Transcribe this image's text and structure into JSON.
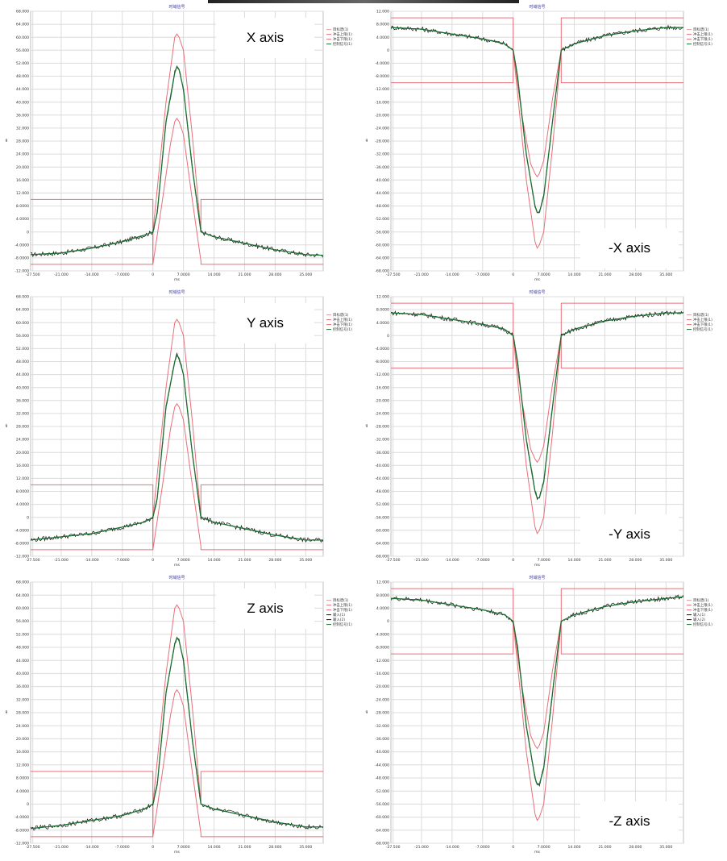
{
  "chart_data": [
    {
      "type": "line",
      "title": "时域信号",
      "label": "X axis",
      "xlabel": "ms",
      "ylabel": "g",
      "xlim": [
        -28,
        39
      ],
      "ylim": [
        -12,
        68
      ],
      "x_ticks": [
        "-27.500",
        "-21.000",
        "-14.000",
        "-7.0000",
        "0",
        "7.0000",
        "14.000",
        "21.000",
        "28.000",
        "35.000"
      ],
      "y_ticks": [
        "68.000",
        "64.000",
        "60.000",
        "56.000",
        "52.000",
        "48.000",
        "44.000",
        "40.000",
        "36.000",
        "32.000",
        "28.000",
        "24.000",
        "20.000",
        "16.000",
        "12.000",
        "8.0000",
        "4.0000",
        "0",
        "-4.0000",
        "-8.0000",
        "-12.000"
      ],
      "legend": [
        "目标谱(1)",
        "冲击上限(1)",
        "冲击下限(1)",
        "控制信号(1)"
      ],
      "colors": {
        "limits": "#e8707a",
        "control": "#1a6e2e",
        "trace": "#111111"
      },
      "series": [
        {
          "name": "冲击上限(1)",
          "x": [
            -28,
            0,
            0,
            3,
            5,
            5.5,
            6,
            7,
            9,
            11,
            11,
            39
          ],
          "y": [
            -10,
            -10,
            0,
            40,
            60,
            61,
            60,
            56,
            30,
            0,
            10,
            10
          ]
        },
        {
          "name": "冲击下限(1)",
          "x": [
            -28,
            0,
            0,
            2,
            4,
            5,
            5.5,
            6,
            7,
            9,
            11,
            11,
            39
          ],
          "y": [
            10,
            10,
            -10,
            8,
            27,
            34,
            35,
            34,
            30,
            10,
            -9,
            -10,
            -10
          ]
        },
        {
          "name": "控制信号(1)",
          "x": [
            -28,
            -21,
            -14,
            -7,
            -2,
            0,
            1,
            3,
            5,
            5.5,
            6,
            7,
            9,
            11,
            14,
            21,
            28,
            35,
            39
          ],
          "y": [
            -7,
            -6.5,
            -5,
            -3,
            -1,
            0,
            6,
            34,
            49,
            51,
            50,
            44,
            20,
            0,
            -1.5,
            -3.5,
            -5.5,
            -7,
            -7.2
          ]
        }
      ]
    },
    {
      "type": "line",
      "title": "时域信号",
      "label": "-X axis",
      "xlabel": "ms",
      "ylabel": "g",
      "xlim": [
        -28,
        39
      ],
      "ylim": [
        -68,
        12
      ],
      "x_ticks": [
        "-27.500",
        "-21.000",
        "-14.000",
        "-7.0000",
        "0",
        "7.0000",
        "14.000",
        "21.000",
        "28.000",
        "35.000"
      ],
      "y_ticks": [
        "12.000",
        "8.0000",
        "4.0000",
        "0",
        "-4.0000",
        "-8.0000",
        "-12.000",
        "-16.000",
        "-20.000",
        "-24.000",
        "-28.000",
        "-32.000",
        "-36.000",
        "-40.000",
        "-44.000",
        "-48.000",
        "-52.000",
        "-56.000",
        "-60.000",
        "-64.000",
        "-68.000"
      ],
      "legend": [
        "目标谱(1)",
        "冲击上限(1)",
        "冲击下限(1)",
        "控制信号(1)"
      ],
      "colors": {
        "limits": "#e8707a",
        "control": "#1a6e2e",
        "trace": "#111111"
      },
      "series": [
        {
          "name": "冲击上限(1)",
          "x": [
            -28,
            0,
            0,
            2,
            4,
            5,
            5.5,
            6,
            7,
            9,
            11,
            11,
            39
          ],
          "y": [
            10,
            10,
            0,
            -20,
            -35,
            -38,
            -39,
            -38,
            -34,
            -15,
            0,
            10,
            10
          ]
        },
        {
          "name": "冲击下限(1)",
          "x": [
            -28,
            0,
            0,
            3,
            5,
            5.5,
            6,
            7,
            9,
            11,
            11,
            39
          ],
          "y": [
            -10,
            -10,
            0,
            -40,
            -59,
            -61,
            -60,
            -56,
            -30,
            0,
            -10,
            -10
          ]
        },
        {
          "name": "控制信号(1)",
          "x": [
            -28,
            -21,
            -14,
            -7,
            -2,
            0,
            1,
            3,
            5,
            5.5,
            6,
            7,
            9,
            11,
            14,
            21,
            28,
            35,
            39
          ],
          "y": [
            7,
            6.5,
            5,
            3.5,
            2,
            0,
            -8,
            -32,
            -48,
            -50,
            -50,
            -45,
            -22,
            0,
            2,
            4.5,
            6,
            7,
            7
          ]
        }
      ]
    },
    {
      "type": "line",
      "title": "时域信号",
      "label": "Y axis",
      "xlabel": "ms",
      "ylabel": "g",
      "xlim": [
        -28,
        39
      ],
      "ylim": [
        -12,
        68
      ],
      "x_ticks": [
        "-27.500",
        "-21.000",
        "-14.000",
        "-7.0000",
        "0",
        "7.0000",
        "14.000",
        "21.000",
        "28.000",
        "35.000"
      ],
      "y_ticks": [
        "68.000",
        "64.000",
        "60.000",
        "56.000",
        "52.000",
        "48.000",
        "44.000",
        "40.000",
        "36.000",
        "32.000",
        "28.000",
        "24.000",
        "20.000",
        "16.000",
        "12.000",
        "8.0000",
        "4.0000",
        "0",
        "-4.0000",
        "-8.0000",
        "-12.000"
      ],
      "legend": [
        "目标谱(1)",
        "冲击上限(1)",
        "冲击下限(1)",
        "控制信号(1)"
      ],
      "colors": {
        "limits": "#e8707a",
        "control": "#1a6e2e",
        "trace": "#111111"
      },
      "series": [
        {
          "name": "冲击上限(1)",
          "x": [
            -28,
            0,
            0,
            3,
            5,
            5.5,
            6,
            7,
            9,
            11,
            11,
            39
          ],
          "y": [
            -10,
            -10,
            0,
            40,
            60,
            61,
            60,
            56,
            30,
            0,
            10,
            10
          ]
        },
        {
          "name": "冲击下限(1)",
          "x": [
            -28,
            0,
            0,
            2,
            4,
            5,
            5.5,
            6,
            7,
            9,
            11,
            11,
            39
          ],
          "y": [
            10,
            10,
            -10,
            8,
            27,
            34,
            35,
            34,
            30,
            10,
            -9,
            -10,
            -10
          ]
        },
        {
          "name": "控制信号(1)",
          "x": [
            -28,
            -21,
            -14,
            -7,
            -2,
            0,
            1,
            3,
            5,
            5.5,
            6,
            7,
            9,
            11,
            14,
            21,
            28,
            35,
            39
          ],
          "y": [
            -7,
            -6,
            -5,
            -3,
            -1.5,
            0,
            6,
            34,
            48,
            50,
            49,
            44,
            20,
            0,
            -1.5,
            -3.5,
            -5.5,
            -7,
            -7
          ]
        }
      ]
    },
    {
      "type": "line",
      "title": "时域信号",
      "label": "-Y axis",
      "xlabel": "ms",
      "ylabel": "g",
      "xlim": [
        -28,
        39
      ],
      "ylim": [
        -68,
        12
      ],
      "x_ticks": [
        "-27.500",
        "-21.000",
        "-14.000",
        "-7.0000",
        "0",
        "7.0000",
        "14.000",
        "21.000",
        "28.000",
        "35.000"
      ],
      "y_ticks": [
        "12.000",
        "8.0000",
        "4.0000",
        "0",
        "-4.0000",
        "-8.0000",
        "-12.000",
        "-16.000",
        "-20.000",
        "-24.000",
        "-28.000",
        "-32.000",
        "-36.000",
        "-40.000",
        "-44.000",
        "-48.000",
        "-52.000",
        "-56.000",
        "-60.000",
        "-64.000",
        "-68.000"
      ],
      "legend": [
        "目标谱(1)",
        "冲击上限(1)",
        "冲击下限(1)",
        "控制信号(1)"
      ],
      "colors": {
        "limits": "#e8707a",
        "control": "#1a6e2e",
        "trace": "#111111"
      },
      "series": [
        {
          "name": "冲击上限(1)",
          "x": [
            -28,
            0,
            0,
            2,
            4,
            5,
            5.5,
            6,
            7,
            9,
            11,
            11,
            39
          ],
          "y": [
            10,
            10,
            0,
            -20,
            -35,
            -38,
            -39,
            -38,
            -34,
            -15,
            0,
            10,
            10
          ]
        },
        {
          "name": "冲击下限(1)",
          "x": [
            -28,
            0,
            0,
            3,
            5,
            5.5,
            6,
            7,
            9,
            11,
            11,
            39
          ],
          "y": [
            -10,
            -10,
            0,
            -40,
            -59,
            -61,
            -60,
            -56,
            -30,
            0,
            -10,
            -10
          ]
        },
        {
          "name": "控制信号(1)",
          "x": [
            -28,
            -21,
            -14,
            -7,
            -2,
            0,
            1,
            3,
            5,
            5.5,
            6,
            7,
            9,
            11,
            14,
            21,
            28,
            35,
            39
          ],
          "y": [
            7,
            6.5,
            5,
            3.5,
            2,
            0,
            -8,
            -32,
            -48,
            -50,
            -50,
            -45,
            -22,
            0,
            2,
            4.5,
            6,
            7,
            7
          ]
        }
      ]
    },
    {
      "type": "line",
      "title": "时域信号",
      "label": "Z axis",
      "xlabel": "ms",
      "ylabel": "g",
      "xlim": [
        -28,
        39
      ],
      "ylim": [
        -12,
        68
      ],
      "x_ticks": [
        "-27.500",
        "-21.000",
        "-14.000",
        "-7.0000",
        "0",
        "7.0000",
        "14.000",
        "21.000",
        "28.000",
        "35.000"
      ],
      "y_ticks": [
        "68.000",
        "64.000",
        "60.000",
        "56.000",
        "52.000",
        "48.000",
        "44.000",
        "40.000",
        "36.000",
        "32.000",
        "28.000",
        "24.000",
        "20.000",
        "16.000",
        "12.000",
        "8.0000",
        "4.0000",
        "0",
        "-4.0000",
        "-8.0000",
        "-12.000"
      ],
      "legend": [
        "目标谱(1)",
        "冲击上限(1)",
        "冲击下限(1)",
        "输入(1)",
        "输入(2)",
        "控制信号(1)"
      ],
      "colors": {
        "limits": "#e8707a",
        "control": "#1a6e2e",
        "trace": "#111111"
      },
      "series": [
        {
          "name": "冲击上限(1)",
          "x": [
            -28,
            0,
            0,
            3,
            5,
            5.5,
            6,
            7,
            9,
            11,
            11,
            39
          ],
          "y": [
            -10,
            -10,
            0,
            40,
            60,
            61,
            60,
            56,
            30,
            0,
            10,
            10
          ]
        },
        {
          "name": "冲击下限(1)",
          "x": [
            -28,
            0,
            0,
            2,
            4,
            5,
            5.5,
            6,
            7,
            9,
            11,
            11,
            39
          ],
          "y": [
            10,
            10,
            -10,
            8,
            27,
            34,
            35,
            34,
            30,
            10,
            -9,
            -10,
            -10
          ]
        },
        {
          "name": "控制信号(1)",
          "x": [
            -28,
            -21,
            -14,
            -7,
            -2,
            0,
            1,
            3,
            5,
            5.5,
            6,
            7,
            9,
            11,
            14,
            21,
            28,
            35,
            39
          ],
          "y": [
            -7.5,
            -6.5,
            -5,
            -3.5,
            -1.5,
            0,
            6,
            34,
            49,
            51,
            50,
            44,
            20,
            0,
            -1.5,
            -3.5,
            -5.5,
            -7,
            -7
          ]
        }
      ]
    },
    {
      "type": "line",
      "title": "时域信号",
      "label": "-Z axis",
      "xlabel": "ms",
      "ylabel": "g",
      "xlim": [
        -28,
        39
      ],
      "ylim": [
        -68,
        12
      ],
      "x_ticks": [
        "-27.500",
        "-21.000",
        "-14.000",
        "-7.0000",
        "0",
        "7.0000",
        "14.000",
        "21.000",
        "28.000",
        "35.000"
      ],
      "y_ticks": [
        "12.000",
        "8.0000",
        "4.0000",
        "0",
        "-4.0000",
        "-8.0000",
        "-12.000",
        "-16.000",
        "-20.000",
        "-24.000",
        "-28.000",
        "-32.000",
        "-36.000",
        "-40.000",
        "-44.000",
        "-48.000",
        "-52.000",
        "-56.000",
        "-60.000",
        "-64.000",
        "-68.000"
      ],
      "legend": [
        "目标谱(1)",
        "冲击上限(1)",
        "冲击下限(1)",
        "输入(1)",
        "输入(2)",
        "控制信号(1)"
      ],
      "colors": {
        "limits": "#e8707a",
        "control": "#1a6e2e",
        "trace": "#111111"
      },
      "series": [
        {
          "name": "冲击上限(1)",
          "x": [
            -28,
            0,
            0,
            2,
            4,
            5,
            5.5,
            6,
            7,
            9,
            11,
            11,
            39
          ],
          "y": [
            10,
            10,
            0,
            -20,
            -35,
            -38,
            -39,
            -38,
            -34,
            -15,
            0,
            10,
            10
          ]
        },
        {
          "name": "冲击下限(1)",
          "x": [
            -28,
            0,
            0,
            3,
            5,
            5.5,
            6,
            7,
            9,
            11,
            11,
            39
          ],
          "y": [
            -10,
            -10,
            0,
            -40,
            -59,
            -61,
            -60,
            -56,
            -30,
            0,
            -10,
            -10
          ]
        },
        {
          "name": "控制信号(1)",
          "x": [
            -28,
            -21,
            -14,
            -7,
            -2,
            0,
            1,
            3,
            5,
            5.5,
            6,
            7,
            9,
            11,
            14,
            21,
            28,
            35,
            39
          ],
          "y": [
            7,
            6.5,
            5,
            3.5,
            2,
            0,
            -8,
            -32,
            -48,
            -50,
            -50,
            -45,
            -22,
            0,
            2,
            4.5,
            6,
            7,
            7.5
          ]
        }
      ]
    }
  ]
}
